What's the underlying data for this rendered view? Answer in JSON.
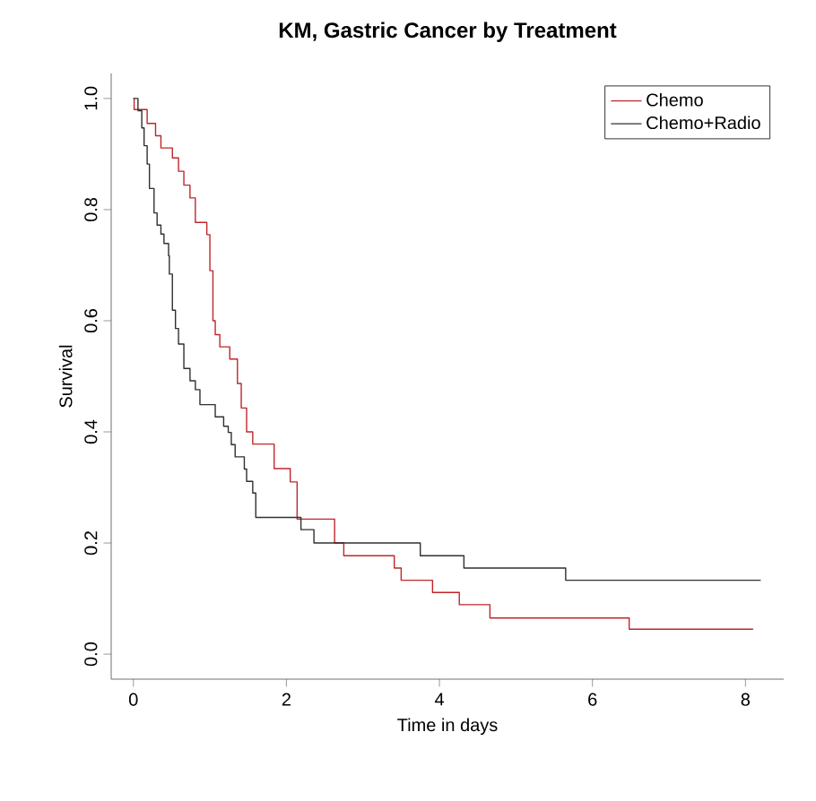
{
  "chart_data": {
    "type": "step",
    "title": "KM, Gastric Cancer by Treatment",
    "xlabel": "Time in days",
    "ylabel": "Survival",
    "xlim": [
      -0.29,
      8.5
    ],
    "ylim": [
      -0.045,
      1.045
    ],
    "xticks": [
      0,
      2,
      4,
      6,
      8
    ],
    "yticks": [
      {
        "value": 0,
        "label": "0.0"
      },
      {
        "value": 0.2,
        "label": "0.2"
      },
      {
        "value": 0.4,
        "label": "0.4"
      },
      {
        "value": 0.6,
        "label": "0.6"
      },
      {
        "value": 0.8,
        "label": "0.8"
      },
      {
        "value": 1,
        "label": "1.0"
      }
    ],
    "legend": "top right",
    "grid": false,
    "series": [
      {
        "name": "Chemo",
        "color": "#c0262b",
        "x": [
          0,
          0.01,
          0.18,
          0.29,
          0.36,
          0.51,
          0.59,
          0.66,
          0.74,
          0.81,
          0.96,
          1.0,
          1.04,
          1.07,
          1.13,
          1.26,
          1.36,
          1.41,
          1.48,
          1.56,
          1.84,
          2.05,
          2.14,
          2.63,
          2.75,
          3.41,
          3.5,
          3.91,
          4.26,
          4.66,
          6.48,
          8.1
        ],
        "values": [
          1,
          0.98,
          0.955,
          0.933,
          0.911,
          0.893,
          0.869,
          0.844,
          0.821,
          0.777,
          0.755,
          0.69,
          0.6,
          0.575,
          0.553,
          0.531,
          0.487,
          0.443,
          0.4,
          0.378,
          0.334,
          0.31,
          0.243,
          0.2,
          0.177,
          0.155,
          0.133,
          0.111,
          0.089,
          0.065,
          0.045,
          0.045
        ]
      },
      {
        "name": "Chemo+Radio",
        "color": "#303030",
        "x": [
          0,
          0.06,
          0.11,
          0.14,
          0.18,
          0.21,
          0.27,
          0.31,
          0.36,
          0.4,
          0.46,
          0.47,
          0.51,
          0.55,
          0.59,
          0.66,
          0.74,
          0.81,
          0.87,
          1.07,
          1.18,
          1.24,
          1.28,
          1.33,
          1.45,
          1.48,
          1.56,
          1.6,
          2.19,
          2.36,
          3.75,
          4.32,
          5.65,
          8.2
        ],
        "values": [
          1,
          0.978,
          0.947,
          0.915,
          0.882,
          0.838,
          0.794,
          0.772,
          0.756,
          0.739,
          0.717,
          0.684,
          0.619,
          0.586,
          0.558,
          0.514,
          0.492,
          0.476,
          0.449,
          0.427,
          0.41,
          0.399,
          0.377,
          0.355,
          0.333,
          0.311,
          0.29,
          0.246,
          0.224,
          0.2,
          0.177,
          0.155,
          0.133,
          0.133
        ]
      }
    ]
  }
}
